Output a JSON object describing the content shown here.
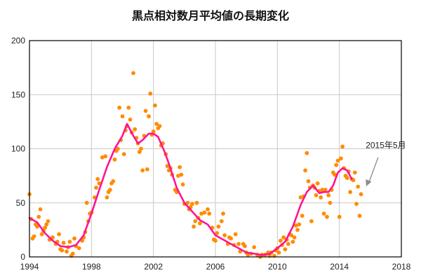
{
  "chart_data": {
    "type": "scatter",
    "title": "黒点相対数月平均値の長期変化",
    "xlabel": "",
    "ylabel": "",
    "xlim": [
      1994,
      2018
    ],
    "ylim": [
      0,
      200
    ],
    "x_ticks": [
      "1994",
      "1998",
      "2002",
      "2006",
      "2010",
      "2014",
      "2018"
    ],
    "y_ticks": [
      "0",
      "50",
      "100",
      "150",
      "200"
    ],
    "grid": true,
    "legend": "none",
    "annotation": "2015年5月",
    "annotation_target": {
      "x": 2015.37,
      "y": 64
    },
    "colors": {
      "monthly": "#ff8c00",
      "smoothed": "#ff1493",
      "grid": "#c8c8c8",
      "axis": "#000000",
      "arrow": "#8c8c8c"
    },
    "series": [
      {
        "style": "points",
        "points": [
          [
            1994.0,
            58
          ],
          [
            1994.1,
            35
          ],
          [
            1994.2,
            17
          ],
          [
            1994.3,
            19
          ],
          [
            1994.4,
            30
          ],
          [
            1994.5,
            28
          ],
          [
            1994.6,
            37
          ],
          [
            1994.7,
            44
          ],
          [
            1994.8,
            21
          ],
          [
            1994.9,
            24
          ],
          [
            1995.0,
            27
          ],
          [
            1995.1,
            30
          ],
          [
            1995.2,
            33
          ],
          [
            1995.3,
            16
          ],
          [
            1995.5,
            18
          ],
          [
            1995.7,
            12
          ],
          [
            1995.8,
            14
          ],
          [
            1995.9,
            21
          ],
          [
            1996.0,
            7
          ],
          [
            1996.1,
            6
          ],
          [
            1996.2,
            13
          ],
          [
            1996.4,
            5
          ],
          [
            1996.5,
            9
          ],
          [
            1996.6,
            14
          ],
          [
            1996.7,
            1
          ],
          [
            1996.8,
            3
          ],
          [
            1996.9,
            17
          ],
          [
            1997.0,
            10
          ],
          [
            1997.2,
            8
          ],
          [
            1997.4,
            15
          ],
          [
            1997.5,
            18
          ],
          [
            1997.6,
            23
          ],
          [
            1997.7,
            50
          ],
          [
            1997.8,
            33
          ],
          [
            1997.9,
            40
          ],
          [
            1998.0,
            41
          ],
          [
            1998.2,
            55
          ],
          [
            1998.3,
            64
          ],
          [
            1998.4,
            72
          ],
          [
            1998.5,
            68
          ],
          [
            1998.7,
            92
          ],
          [
            1998.9,
            93
          ],
          [
            1999.0,
            55
          ],
          [
            1999.1,
            60
          ],
          [
            1999.2,
            62
          ],
          [
            1999.3,
            68
          ],
          [
            1999.4,
            70
          ],
          [
            1999.5,
            90
          ],
          [
            1999.6,
            98
          ],
          [
            1999.7,
            100
          ],
          [
            1999.8,
            138
          ],
          [
            1999.9,
            108
          ],
          [
            2000.0,
            130
          ],
          [
            2000.1,
            95
          ],
          [
            2000.2,
            117
          ],
          [
            2000.3,
            121
          ],
          [
            2000.4,
            138
          ],
          [
            2000.5,
            127
          ],
          [
            2000.6,
            115
          ],
          [
            2000.7,
            170
          ],
          [
            2000.8,
            118
          ],
          [
            2000.9,
            110
          ],
          [
            2001.0,
            105
          ],
          [
            2001.1,
            97
          ],
          [
            2001.2,
            100
          ],
          [
            2001.3,
            80
          ],
          [
            2001.4,
            112
          ],
          [
            2001.5,
            135
          ],
          [
            2001.6,
            81
          ],
          [
            2001.7,
            130
          ],
          [
            2001.8,
            151
          ],
          [
            2001.9,
            113
          ],
          [
            2002.0,
            116
          ],
          [
            2002.1,
            140
          ],
          [
            2002.2,
            123
          ],
          [
            2002.3,
            119
          ],
          [
            2002.4,
            121
          ],
          [
            2002.5,
            103
          ],
          [
            2002.6,
            105
          ],
          [
            2002.8,
            95
          ],
          [
            2002.9,
            84
          ],
          [
            2003.0,
            80
          ],
          [
            2003.1,
            82
          ],
          [
            2003.2,
            76
          ],
          [
            2003.4,
            62
          ],
          [
            2003.5,
            60
          ],
          [
            2003.6,
            75
          ],
          [
            2003.7,
            83
          ],
          [
            2003.8,
            76
          ],
          [
            2003.9,
            67
          ],
          [
            2004.0,
            49
          ],
          [
            2004.2,
            50
          ],
          [
            2004.3,
            44
          ],
          [
            2004.4,
            46
          ],
          [
            2004.5,
            49
          ],
          [
            2004.6,
            28
          ],
          [
            2004.7,
            33
          ],
          [
            2004.8,
            50
          ],
          [
            2004.9,
            36
          ],
          [
            2005.0,
            31
          ],
          [
            2005.1,
            40
          ],
          [
            2005.3,
            41
          ],
          [
            2005.5,
            44
          ],
          [
            2005.6,
            40
          ],
          [
            2005.8,
            27
          ],
          [
            2005.9,
            16
          ],
          [
            2006.0,
            15
          ],
          [
            2006.1,
            22
          ],
          [
            2006.2,
            28
          ],
          [
            2006.4,
            33
          ],
          [
            2006.5,
            40
          ],
          [
            2006.6,
            20
          ],
          [
            2006.8,
            12
          ],
          [
            2006.9,
            18
          ],
          [
            2007.0,
            17
          ],
          [
            2007.2,
            11
          ],
          [
            2007.3,
            21
          ],
          [
            2007.5,
            12
          ],
          [
            2007.6,
            5
          ],
          [
            2007.8,
            12
          ],
          [
            2007.9,
            10
          ],
          [
            2008.0,
            4
          ],
          [
            2008.1,
            2
          ],
          [
            2008.3,
            3
          ],
          [
            2008.5,
            9
          ],
          [
            2008.7,
            2
          ],
          [
            2008.9,
            0
          ],
          [
            2009.0,
            2
          ],
          [
            2009.2,
            2
          ],
          [
            2009.4,
            4
          ],
          [
            2009.5,
            1
          ],
          [
            2009.6,
            4
          ],
          [
            2009.8,
            1
          ],
          [
            2009.9,
            6
          ],
          [
            2010.0,
            8
          ],
          [
            2010.1,
            4
          ],
          [
            2010.2,
            15
          ],
          [
            2010.3,
            11
          ],
          [
            2010.4,
            18
          ],
          [
            2010.5,
            7
          ],
          [
            2010.6,
            16
          ],
          [
            2010.7,
            12
          ],
          [
            2010.8,
            21
          ],
          [
            2010.9,
            20
          ],
          [
            2011.0,
            14
          ],
          [
            2011.1,
            18
          ],
          [
            2011.2,
            29
          ],
          [
            2011.3,
            25
          ],
          [
            2011.4,
            30
          ],
          [
            2011.5,
            55
          ],
          [
            2011.6,
            38
          ],
          [
            2011.7,
            56
          ],
          [
            2011.8,
            80
          ],
          [
            2011.9,
            96
          ],
          [
            2012.0,
            70
          ],
          [
            2012.1,
            64
          ],
          [
            2012.2,
            33
          ],
          [
            2012.3,
            66
          ],
          [
            2012.4,
            64
          ],
          [
            2012.5,
            57
          ],
          [
            2012.6,
            68
          ],
          [
            2012.7,
            61
          ],
          [
            2012.8,
            55
          ],
          [
            2012.9,
            62
          ],
          [
            2013.0,
            40
          ],
          [
            2013.1,
            62
          ],
          [
            2013.2,
            37
          ],
          [
            2013.3,
            57
          ],
          [
            2013.4,
            50
          ],
          [
            2013.5,
            62
          ],
          [
            2013.6,
            78
          ],
          [
            2013.7,
            76
          ],
          [
            2013.8,
            85
          ],
          [
            2013.9,
            89
          ],
          [
            2014.0,
            37
          ],
          [
            2014.1,
            91
          ],
          [
            2014.2,
            102
          ],
          [
            2014.3,
            82
          ],
          [
            2014.4,
            75
          ],
          [
            2014.5,
            73
          ],
          [
            2014.6,
            79
          ],
          [
            2014.7,
            60
          ],
          [
            2014.8,
            72
          ],
          [
            2014.9,
            71
          ],
          [
            2015.0,
            78
          ],
          [
            2015.1,
            49
          ],
          [
            2015.2,
            65
          ],
          [
            2015.3,
            38
          ],
          [
            2015.4,
            58
          ]
        ]
      },
      {
        "style": "line",
        "points": [
          [
            1994.0,
            36
          ],
          [
            1994.5,
            32
          ],
          [
            1995.0,
            22
          ],
          [
            1995.5,
            15
          ],
          [
            1996.0,
            10
          ],
          [
            1996.5,
            9
          ],
          [
            1997.0,
            11
          ],
          [
            1997.5,
            20
          ],
          [
            1998.0,
            40
          ],
          [
            1998.5,
            62
          ],
          [
            1999.0,
            83
          ],
          [
            1999.5,
            100
          ],
          [
            2000.0,
            112
          ],
          [
            2000.3,
            123
          ],
          [
            2000.7,
            112
          ],
          [
            2001.0,
            105
          ],
          [
            2001.3,
            108
          ],
          [
            2001.7,
            114
          ],
          [
            2002.0,
            114
          ],
          [
            2002.3,
            111
          ],
          [
            2002.7,
            98
          ],
          [
            2003.0,
            86
          ],
          [
            2003.5,
            64
          ],
          [
            2004.0,
            50
          ],
          [
            2004.5,
            42
          ],
          [
            2005.0,
            34
          ],
          [
            2005.5,
            30
          ],
          [
            2006.0,
            20
          ],
          [
            2006.5,
            16
          ],
          [
            2007.0,
            12
          ],
          [
            2007.5,
            8
          ],
          [
            2008.0,
            4
          ],
          [
            2008.5,
            3
          ],
          [
            2009.0,
            1.7
          ],
          [
            2009.5,
            2.8
          ],
          [
            2010.0,
            8
          ],
          [
            2010.5,
            14
          ],
          [
            2011.0,
            28
          ],
          [
            2011.5,
            48
          ],
          [
            2011.9,
            60
          ],
          [
            2012.3,
            66
          ],
          [
            2012.7,
            59
          ],
          [
            2013.0,
            60
          ],
          [
            2013.3,
            60
          ],
          [
            2013.6,
            66
          ],
          [
            2013.9,
            78
          ],
          [
            2014.2,
            82
          ],
          [
            2014.5,
            80
          ],
          [
            2014.8,
            72
          ]
        ]
      }
    ]
  }
}
